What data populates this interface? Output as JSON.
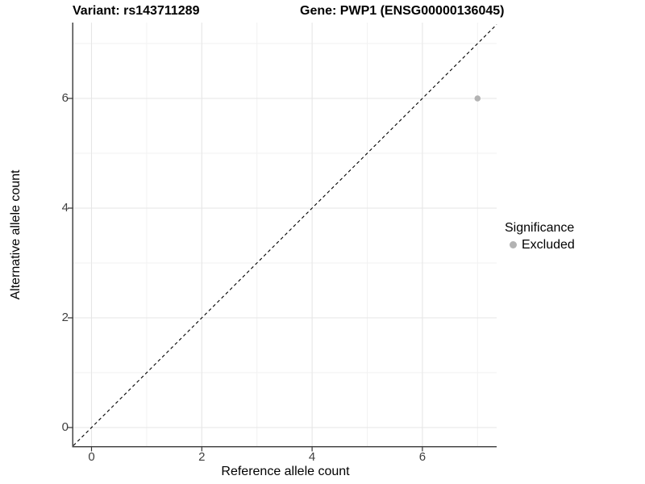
{
  "titles": {
    "variant": "Variant: rs143711289",
    "gene": "Gene: PWP1 (ENSG00000136045)"
  },
  "chart_data": {
    "type": "scatter",
    "title": "Variant: rs143711289    Gene: PWP1 (ENSG00000136045)",
    "xlabel": "Reference allele count",
    "ylabel": "Alternative allele count",
    "xlim": [
      -0.35,
      7.35
    ],
    "ylim": [
      -0.35,
      7.35
    ],
    "x_ticks": [
      0,
      2,
      4,
      6
    ],
    "y_ticks": [
      0,
      2,
      4,
      6
    ],
    "x_minor_ticks": [
      1,
      3,
      5,
      7
    ],
    "y_minor_ticks": [
      1,
      3,
      5,
      7
    ],
    "grid": true,
    "series": [
      {
        "name": "Excluded",
        "points": [
          {
            "x": 7,
            "y": 6
          }
        ]
      }
    ],
    "reference_line": {
      "type": "identity",
      "slope": 1,
      "intercept": 0,
      "style": "dashed"
    },
    "legend": {
      "position": "right",
      "title": "Significance",
      "items": [
        {
          "label": "Excluded",
          "color": "#b3b3b3"
        }
      ]
    }
  },
  "colors": {
    "background": "#ffffff",
    "grid_major": "#e6e6e6",
    "grid_minor": "#f2f2f2",
    "axis_line": "#454545",
    "tick_mark": "#333333",
    "tick_text": "#3f3f3f",
    "title_text": "#000000",
    "point": "#b3b3b3",
    "dashed_line": "#000000"
  }
}
